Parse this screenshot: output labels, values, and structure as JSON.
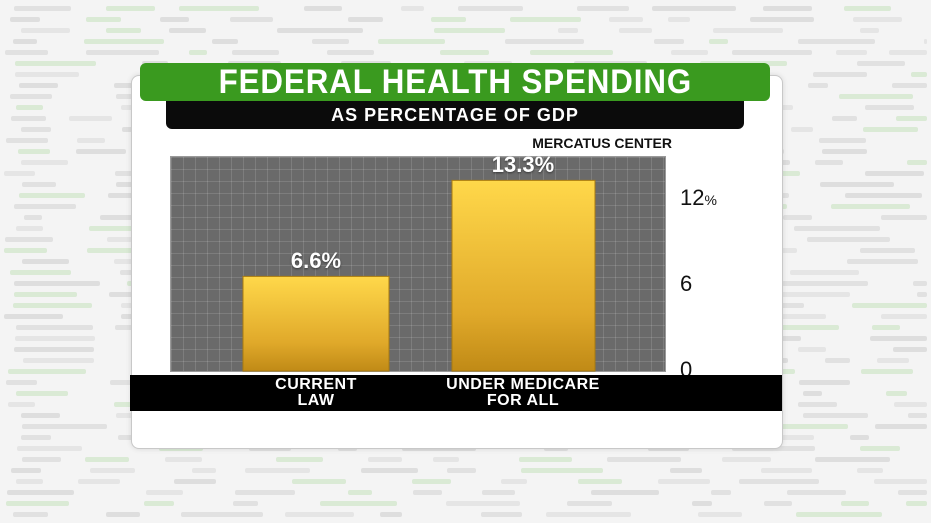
{
  "colors": {
    "title_bg": "#3a9a1f",
    "subtitle_bg": "#0b0b0b",
    "plot_bg": "#6a6a6a",
    "bar_top": "#ffd84a",
    "bar_bottom": "#c08a16",
    "axis_bar": "#000000"
  },
  "chart_data": {
    "type": "bar",
    "title": "FEDERAL HEALTH SPENDING",
    "subtitle": "AS PERCENTAGE OF GDP",
    "source": "MERCATUS CENTER",
    "categories": [
      [
        "CURRENT",
        "LAW"
      ],
      [
        "UNDER MEDICARE",
        "FOR ALL"
      ]
    ],
    "values": [
      6.6,
      13.3
    ],
    "value_labels": [
      "6.6%",
      "13.3%"
    ],
    "y_ticks": [
      {
        "value": 0,
        "label": "0",
        "unit": ""
      },
      {
        "value": 6,
        "label": "6",
        "unit": ""
      },
      {
        "value": 12,
        "label": "12",
        "unit": "%"
      }
    ],
    "ylim": [
      0,
      15
    ],
    "grid": true
  }
}
